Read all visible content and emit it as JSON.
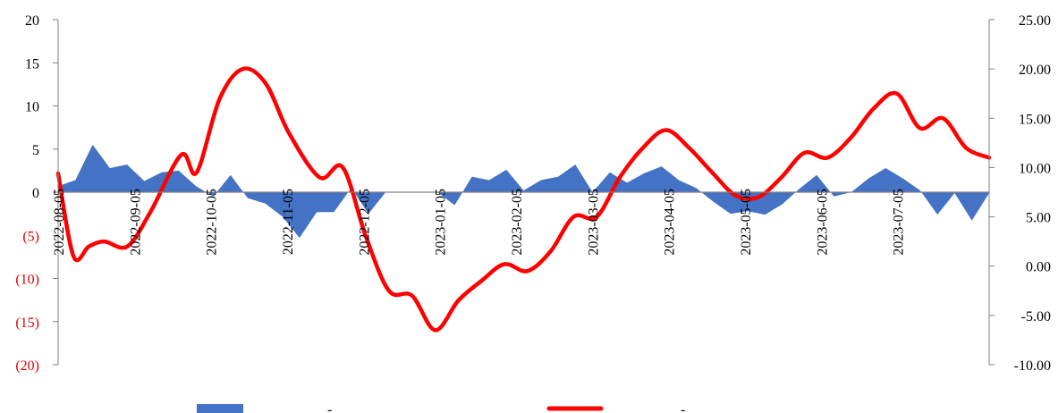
{
  "chart_data": {
    "type": "area+line",
    "title": "",
    "colors": {
      "area": "#4472C4",
      "line": "#FF0000",
      "negative_tick": "#E00000",
      "axis": "#808080"
    },
    "left_axis": {
      "ylim": [
        -20,
        20
      ],
      "ticks": [
        20,
        15,
        10,
        5,
        0,
        -5,
        -10,
        -15,
        -20
      ],
      "tick_labels": [
        "20",
        "15",
        "10",
        "5",
        "0",
        "(5)",
        "(10)",
        "(15)",
        "(20)"
      ]
    },
    "right_axis": {
      "ylim": [
        -10,
        25
      ],
      "ticks": [
        25,
        20,
        15,
        10,
        5,
        0,
        -5,
        -10
      ],
      "tick_labels": [
        "25.00",
        "20.00",
        "15.00",
        "10.00",
        "5.00",
        "0.00",
        "-5.00",
        "-10.00"
      ]
    },
    "x_axis": {
      "tick_labels": [
        "2022-08-05",
        "2022-09-05",
        "2022-10-05",
        "2022-11-05",
        "2022-12-05",
        "2023-01-05",
        "2023-02-05",
        "2023-03-05",
        "2023-04-05",
        "2023-05-05",
        "2023-06-05",
        "2023-07-05"
      ]
    },
    "series": [
      {
        "type": "area",
        "axis": "left",
        "values": [
          0.7,
          1.4,
          5.5,
          2.8,
          3.2,
          1.3,
          2.3,
          2.5,
          0.7,
          -0.5,
          2.0,
          -0.7,
          -1.3,
          -2.8,
          -5.3,
          -2.3,
          -2.3,
          0.5,
          -2.5,
          0.0,
          0.0,
          0.0,
          0.0,
          -1.5,
          1.8,
          1.4,
          2.6,
          0.2,
          1.4,
          1.8,
          3.2,
          0.0,
          2.3,
          1.1,
          2.2,
          3.0,
          1.4,
          0.5,
          -1.1,
          -2.5,
          -2.2,
          -2.6,
          -1.4,
          0.4,
          2.0,
          -0.5,
          0.0,
          1.6,
          2.8,
          1.6,
          0.2,
          -2.6,
          -0.1,
          -3.3,
          -0.1
        ]
      },
      {
        "type": "line",
        "axis": "right",
        "points": [
          [
            0,
            9.4
          ],
          [
            2,
            1.0
          ],
          [
            4,
            2.0
          ],
          [
            6,
            2.5
          ],
          [
            9,
            2.0
          ],
          [
            12,
            5.5
          ],
          [
            16,
            11.3
          ],
          [
            18,
            9.5
          ],
          [
            21,
            17.0
          ],
          [
            24,
            20.0
          ],
          [
            27,
            18.5
          ],
          [
            30,
            13.5
          ],
          [
            34,
            9.0
          ],
          [
            37,
            10.0
          ],
          [
            40,
            3.0
          ],
          [
            43,
            -2.5
          ],
          [
            46,
            -3.0
          ],
          [
            49,
            -6.5
          ],
          [
            52,
            -3.5
          ],
          [
            55,
            -1.5
          ],
          [
            58,
            0.2
          ],
          [
            61,
            -0.5
          ],
          [
            64,
            1.5
          ],
          [
            67,
            5.0
          ],
          [
            70,
            5.0
          ],
          [
            73,
            9.0
          ],
          [
            76,
            12.0
          ],
          [
            79,
            13.8
          ],
          [
            82,
            12.0
          ],
          [
            85,
            9.5
          ],
          [
            88,
            7.2
          ],
          [
            91,
            7.0
          ],
          [
            94,
            9.0
          ],
          [
            97,
            11.5
          ],
          [
            100,
            11.0
          ],
          [
            103,
            13.0
          ],
          [
            106,
            16.0
          ],
          [
            109,
            17.5
          ],
          [
            112,
            14.0
          ],
          [
            115,
            15.0
          ],
          [
            118,
            12.0
          ],
          [
            121,
            11.0
          ]
        ],
        "x_max": 121
      }
    ],
    "legend": [
      "-",
      "-"
    ]
  }
}
